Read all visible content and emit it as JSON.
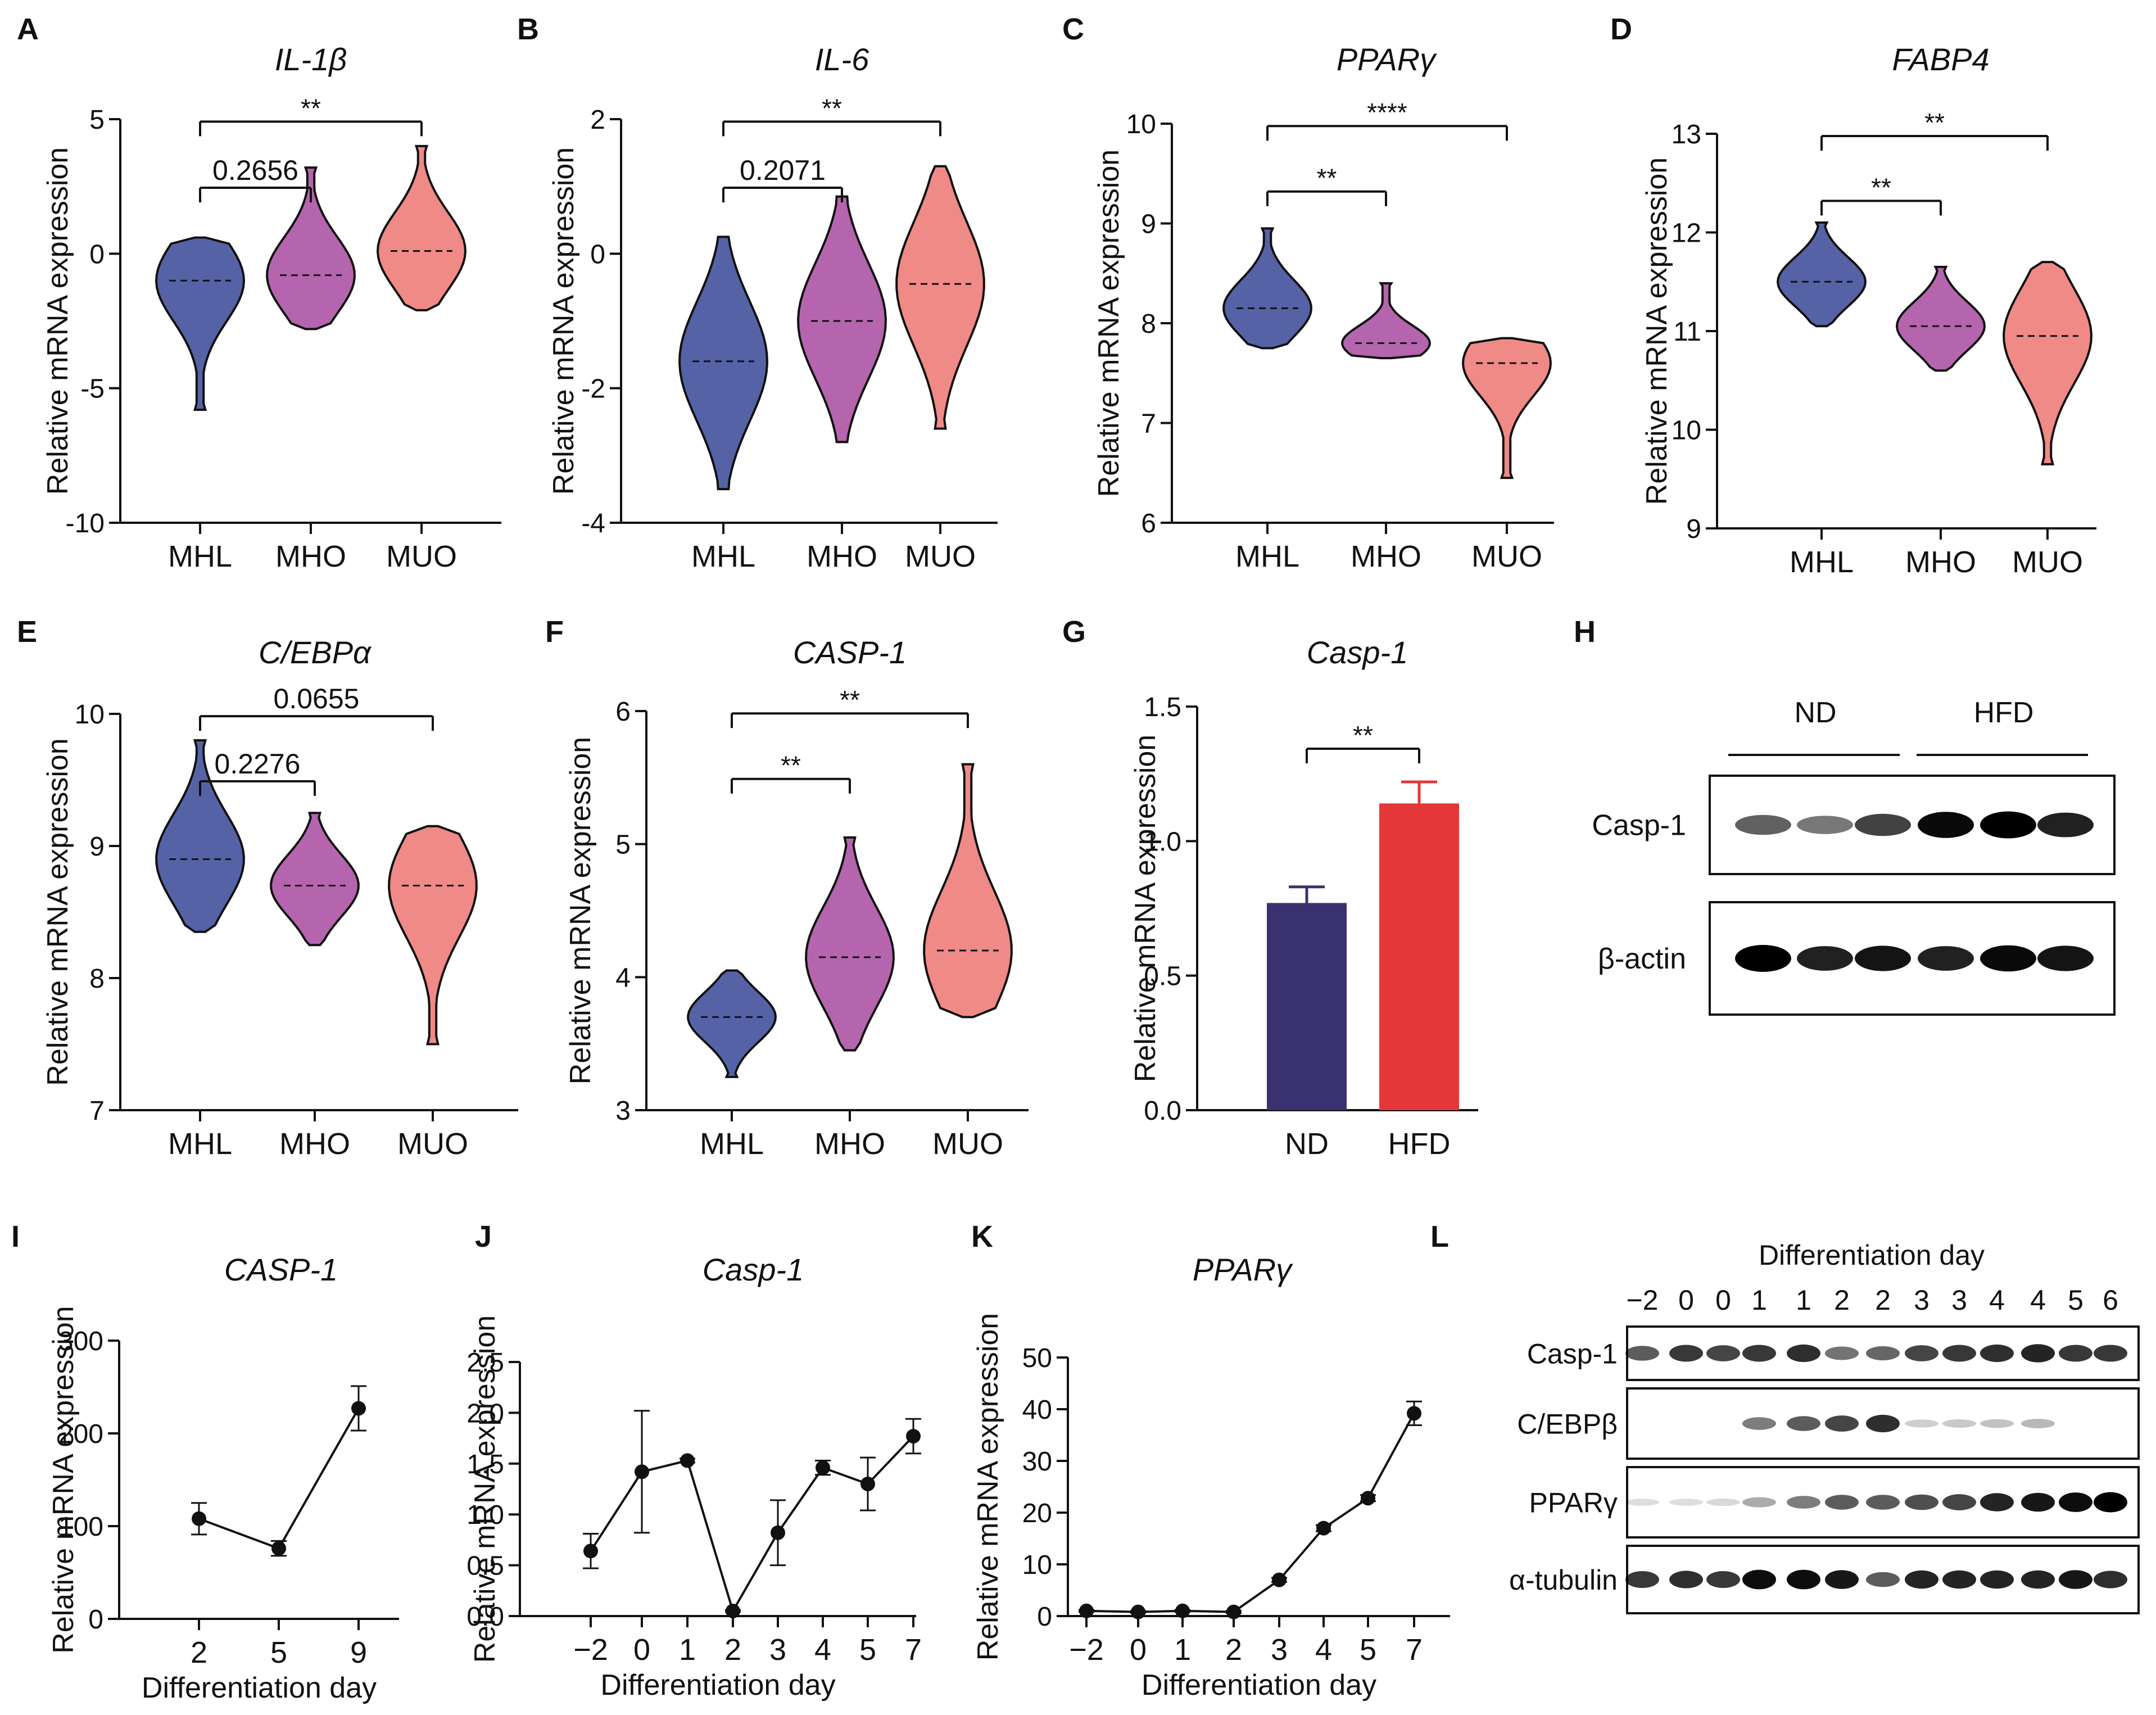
{
  "colors": {
    "MHL": "#5563A6",
    "MHO": "#B565AD",
    "MUO": "#EF8A87",
    "ND": "#3A3171",
    "HFD": "#E3373A",
    "ink": "#111111"
  },
  "chart_data": [
    {
      "id": "A",
      "type": "violin",
      "panel_label": "A",
      "title": "IL-1β",
      "ylabel": "Relative mRNA expression",
      "ylim": [
        -10,
        5
      ],
      "yticks": [
        "-10",
        "-5",
        "0",
        "5"
      ],
      "categories": [
        "MHL",
        "MHO",
        "MUO"
      ],
      "medians": [
        -1.0,
        -0.8,
        0.1
      ],
      "ranges": [
        [
          -5.8,
          0.6
        ],
        [
          -2.8,
          3.2
        ],
        [
          -2.1,
          4.0
        ]
      ],
      "brackets": [
        {
          "label": "0.2656",
          "from": "MHL",
          "to": "MHO"
        },
        {
          "label": "**",
          "from": "MHL",
          "to": "MUO"
        }
      ]
    },
    {
      "id": "B",
      "type": "violin",
      "panel_label": "B",
      "title": "IL-6",
      "ylabel": "Relative mRNA expression",
      "ylim": [
        -4,
        2
      ],
      "yticks": [
        "-4",
        "-2",
        "0",
        "2"
      ],
      "categories": [
        "MHL",
        "MHO",
        "MUO"
      ],
      "medians": [
        -1.6,
        -1.0,
        -0.45
      ],
      "ranges": [
        [
          -3.5,
          0.25
        ],
        [
          -2.8,
          0.85
        ],
        [
          -2.6,
          1.3
        ]
      ],
      "brackets": [
        {
          "label": "0.2071",
          "from": "MHL",
          "to": "MHO"
        },
        {
          "label": "**",
          "from": "MHL",
          "to": "MUO"
        }
      ]
    },
    {
      "id": "C",
      "type": "violin",
      "panel_label": "C",
      "title": "PPARγ",
      "ylabel": "Relative mRNA expression",
      "ylim": [
        6,
        10
      ],
      "yticks": [
        "6",
        "7",
        "8",
        "9",
        "10"
      ],
      "categories": [
        "MHL",
        "MHO",
        "MUO"
      ],
      "medians": [
        8.15,
        7.8,
        7.6
      ],
      "ranges": [
        [
          7.75,
          8.95
        ],
        [
          7.65,
          8.4
        ],
        [
          6.45,
          7.85
        ]
      ],
      "brackets": [
        {
          "label": "**",
          "from": "MHL",
          "to": "MHO"
        },
        {
          "label": "****",
          "from": "MHL",
          "to": "MUO"
        }
      ]
    },
    {
      "id": "D",
      "type": "violin",
      "panel_label": "D",
      "title": "FABP4",
      "ylabel": "Relative mRNA expression",
      "ylim": [
        9,
        13
      ],
      "yticks": [
        "9",
        "10",
        "11",
        "12",
        "13"
      ],
      "categories": [
        "MHL",
        "MHO",
        "MUO"
      ],
      "medians": [
        11.5,
        11.05,
        10.95
      ],
      "ranges": [
        [
          11.05,
          12.1
        ],
        [
          10.6,
          11.65
        ],
        [
          9.65,
          11.7
        ]
      ],
      "brackets": [
        {
          "label": "**",
          "from": "MHL",
          "to": "MHO"
        },
        {
          "label": "**",
          "from": "MHL",
          "to": "MUO"
        }
      ]
    },
    {
      "id": "E",
      "type": "violin",
      "panel_label": "E",
      "title": "C/EBPα",
      "ylabel": "Relative mRNA expression",
      "ylim": [
        7,
        10
      ],
      "yticks": [
        "7",
        "8",
        "9",
        "10"
      ],
      "categories": [
        "MHL",
        "MHO",
        "MUO"
      ],
      "medians": [
        8.9,
        8.7,
        8.7
      ],
      "ranges": [
        [
          8.35,
          9.8
        ],
        [
          8.25,
          9.25
        ],
        [
          7.5,
          9.15
        ]
      ],
      "brackets": [
        {
          "label": "0.2276",
          "from": "MHL",
          "to": "MHO"
        },
        {
          "label": "0.0655",
          "from": "MHL",
          "to": "MUO"
        }
      ]
    },
    {
      "id": "F",
      "type": "violin",
      "panel_label": "F",
      "title": "CASP-1",
      "ylabel": "Relative mRNA expression",
      "ylim": [
        3,
        6
      ],
      "yticks": [
        "3",
        "4",
        "5",
        "6"
      ],
      "categories": [
        "MHL",
        "MHO",
        "MUO"
      ],
      "medians": [
        3.7,
        4.15,
        4.2
      ],
      "ranges": [
        [
          3.25,
          4.05
        ],
        [
          3.45,
          5.05
        ],
        [
          3.7,
          5.6
        ]
      ],
      "brackets": [
        {
          "label": "**",
          "from": "MHL",
          "to": "MHO"
        },
        {
          "label": "**",
          "from": "MHL",
          "to": "MUO"
        }
      ]
    },
    {
      "id": "G",
      "type": "bar",
      "panel_label": "G",
      "title": "Casp-1",
      "ylabel": "Relative mRNA expression",
      "ylim": [
        0,
        1.5
      ],
      "yticks": [
        "0.0",
        "0.5",
        "1.0",
        "1.5"
      ],
      "categories": [
        "ND",
        "HFD"
      ],
      "values": [
        0.77,
        1.14
      ],
      "errors": [
        0.06,
        0.08
      ],
      "brackets": [
        {
          "label": "**",
          "from": "ND",
          "to": "HFD"
        }
      ]
    },
    {
      "id": "I",
      "type": "line",
      "panel_label": "I",
      "title": "CASP-1",
      "xlabel": "Differentiation day",
      "ylabel": "Relative mRNA expression",
      "ylim": [
        0,
        300
      ],
      "yticks": [
        "0",
        "100",
        "200",
        "300"
      ],
      "x": [
        "2",
        "5",
        "9"
      ],
      "values": [
        108,
        76,
        227
      ],
      "errors": [
        17,
        8,
        24
      ]
    },
    {
      "id": "J",
      "type": "line",
      "panel_label": "J",
      "title": "Casp-1",
      "xlabel": "Differentiation day",
      "ylabel": "Relative mRNA expression",
      "ylim": [
        0,
        2.5
      ],
      "yticks": [
        "0.0",
        "0.5",
        "1.0",
        "1.5",
        "2.0",
        "2.5"
      ],
      "x": [
        "−2",
        "0",
        "1",
        "2",
        "3",
        "4",
        "5",
        "7"
      ],
      "values": [
        0.64,
        1.42,
        1.53,
        0.05,
        0.82,
        1.46,
        1.3,
        1.77
      ],
      "errors": [
        0.17,
        0.6,
        0.02,
        0.01,
        0.32,
        0.07,
        0.26,
        0.17
      ]
    },
    {
      "id": "K",
      "type": "line",
      "panel_label": "K",
      "title": "PPARγ",
      "xlabel": "Differentiation day",
      "ylabel": "Relative mRNA expression",
      "ylim": [
        0,
        50
      ],
      "yticks": [
        "0",
        "10",
        "20",
        "30",
        "40",
        "50"
      ],
      "x": [
        "−2",
        "0",
        "1",
        "2",
        "3",
        "4",
        "5",
        "7"
      ],
      "values": [
        1.0,
        0.8,
        1.0,
        0.8,
        7.0,
        17.0,
        22.8,
        39.2
      ],
      "errors": [
        0.2,
        0.2,
        0.2,
        0.2,
        0.4,
        0.6,
        0.6,
        2.3
      ]
    }
  ],
  "western_h": {
    "panel_label": "H",
    "groups": [
      "ND",
      "HFD"
    ],
    "rows": [
      {
        "label": "Casp-1",
        "intensities": [
          0.55,
          0.45,
          0.7,
          0.95,
          1.0,
          0.85
        ]
      },
      {
        "label": "β-actin",
        "intensities": [
          1.0,
          0.85,
          0.9,
          0.85,
          0.95,
          0.9
        ]
      }
    ]
  },
  "western_l": {
    "panel_label": "L",
    "header": "Differentiation day",
    "lanes": [
      "−2",
      "0",
      "0",
      "1",
      "1",
      "2",
      "2",
      "3",
      "3",
      "4",
      "4",
      "5",
      "6"
    ],
    "rows": [
      {
        "label": "Casp-1",
        "intensities": [
          0.6,
          0.75,
          0.7,
          0.75,
          0.8,
          0.5,
          0.55,
          0.7,
          0.75,
          0.8,
          0.85,
          0.75,
          0.75
        ]
      },
      {
        "label": "C/EBPβ",
        "intensities": [
          0,
          0,
          0,
          0.45,
          0.6,
          0.7,
          0.8,
          0.1,
          0.12,
          0.15,
          0.2,
          0,
          0
        ]
      },
      {
        "label": "PPARγ",
        "intensities": [
          0.03,
          0.03,
          0.05,
          0.25,
          0.45,
          0.6,
          0.6,
          0.65,
          0.7,
          0.85,
          0.9,
          0.95,
          1.0
        ]
      },
      {
        "label": "α-tubulin",
        "intensities": [
          0.75,
          0.8,
          0.75,
          0.95,
          0.95,
          0.9,
          0.6,
          0.85,
          0.85,
          0.85,
          0.85,
          0.9,
          0.8
        ]
      }
    ]
  }
}
